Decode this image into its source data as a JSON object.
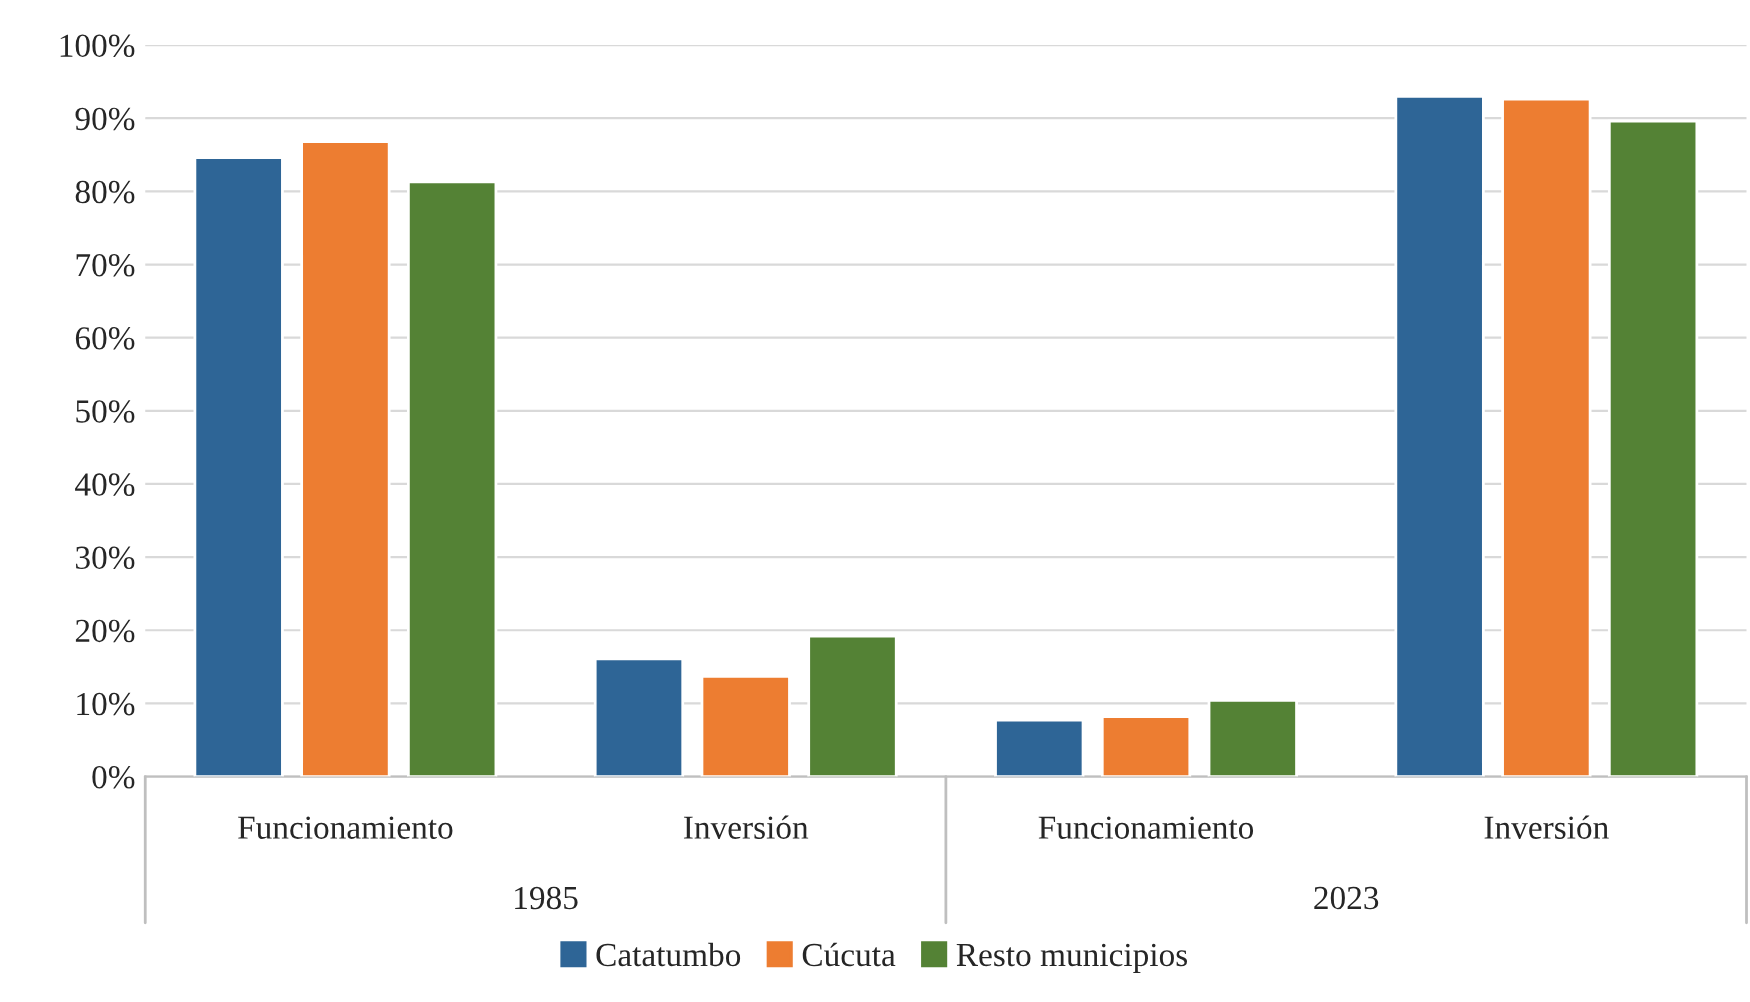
{
  "chart_data": {
    "type": "bar",
    "categories": [
      "Funcionamiento",
      "Inversión",
      "Funcionamiento",
      "Inversión"
    ],
    "series": [
      {
        "name": "Catatumbo",
        "color": "#2e6596",
        "values": [
          84.6,
          16.1,
          7.7,
          93.0
        ]
      },
      {
        "name": "Cúcuta",
        "color": "#ed7d31",
        "values": [
          86.8,
          13.7,
          8.2,
          92.6
        ]
      },
      {
        "name": "Resto municipios",
        "color": "#548235",
        "values": [
          81.3,
          19.2,
          10.4,
          89.6
        ]
      }
    ],
    "ylim": [
      0,
      100
    ],
    "yticks": [
      {
        "value": 0,
        "label": "0%"
      },
      {
        "value": 10,
        "label": "10%"
      },
      {
        "value": 20,
        "label": "20%"
      },
      {
        "value": 30,
        "label": "30%"
      },
      {
        "value": 40,
        "label": "40%"
      },
      {
        "value": 50,
        "label": "50%"
      },
      {
        "value": 60,
        "label": "60%"
      },
      {
        "value": 70,
        "label": "70%"
      },
      {
        "value": 80,
        "label": "80%"
      },
      {
        "value": 90,
        "label": "90%"
      },
      {
        "value": 100,
        "label": "100%"
      }
    ],
    "annotations": [
      "1985",
      "2023"
    ],
    "grid": "y",
    "legend": "bottom"
  }
}
